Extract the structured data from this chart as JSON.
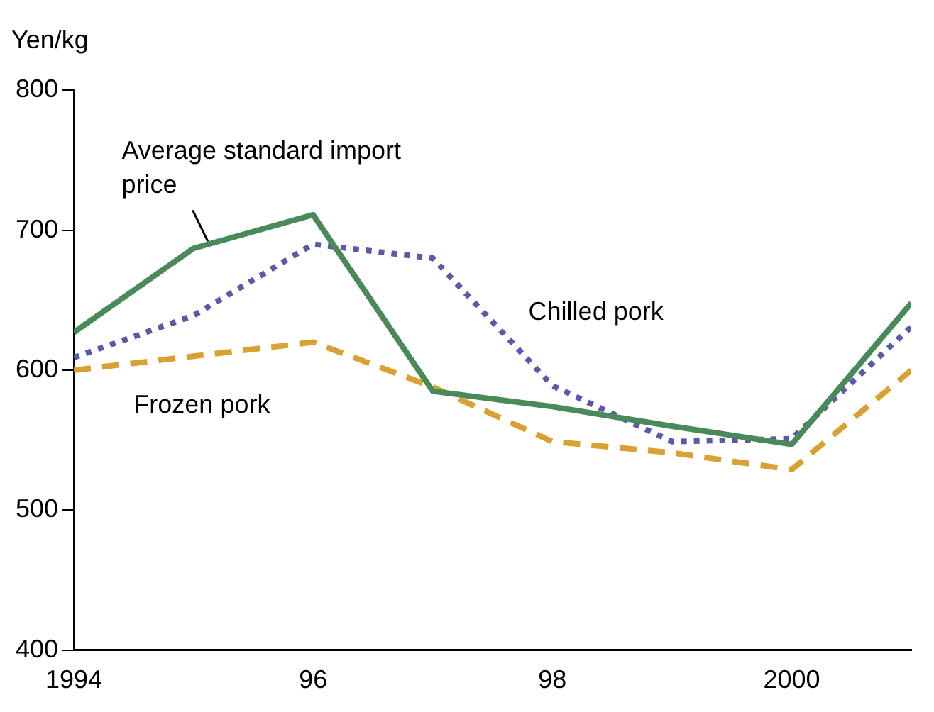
{
  "chart_data": {
    "type": "line",
    "ylabel": "Yen/kg",
    "x": [
      1994,
      1995,
      1996,
      1997,
      1998,
      1999,
      2000,
      2001
    ],
    "xlim": [
      1994,
      2001
    ],
    "xticks": [
      1994,
      {
        "value": 1996,
        "label": "96"
      },
      {
        "value": 1998,
        "label": "98"
      },
      2000
    ],
    "ylim": [
      400,
      800
    ],
    "yticks": [
      400,
      500,
      600,
      700,
      800
    ],
    "grid": false,
    "legend": false,
    "marker": "none",
    "series": [
      {
        "name": "Average standard import price",
        "color": "#4a8a5a",
        "line_style": "solid",
        "values": [
          627,
          687,
          711,
          585,
          574,
          560,
          547,
          648
        ]
      },
      {
        "name": "Chilled pork",
        "color": "#5a5aa8",
        "line_style": "dotted",
        "values": [
          609,
          639,
          690,
          680,
          589,
          549,
          551,
          631
        ]
      },
      {
        "name": "Frozen pork",
        "color": "#d9a032",
        "line_style": "dashed",
        "values": [
          600,
          610,
          620,
          588,
          549,
          541,
          529,
          600
        ]
      }
    ]
  }
}
